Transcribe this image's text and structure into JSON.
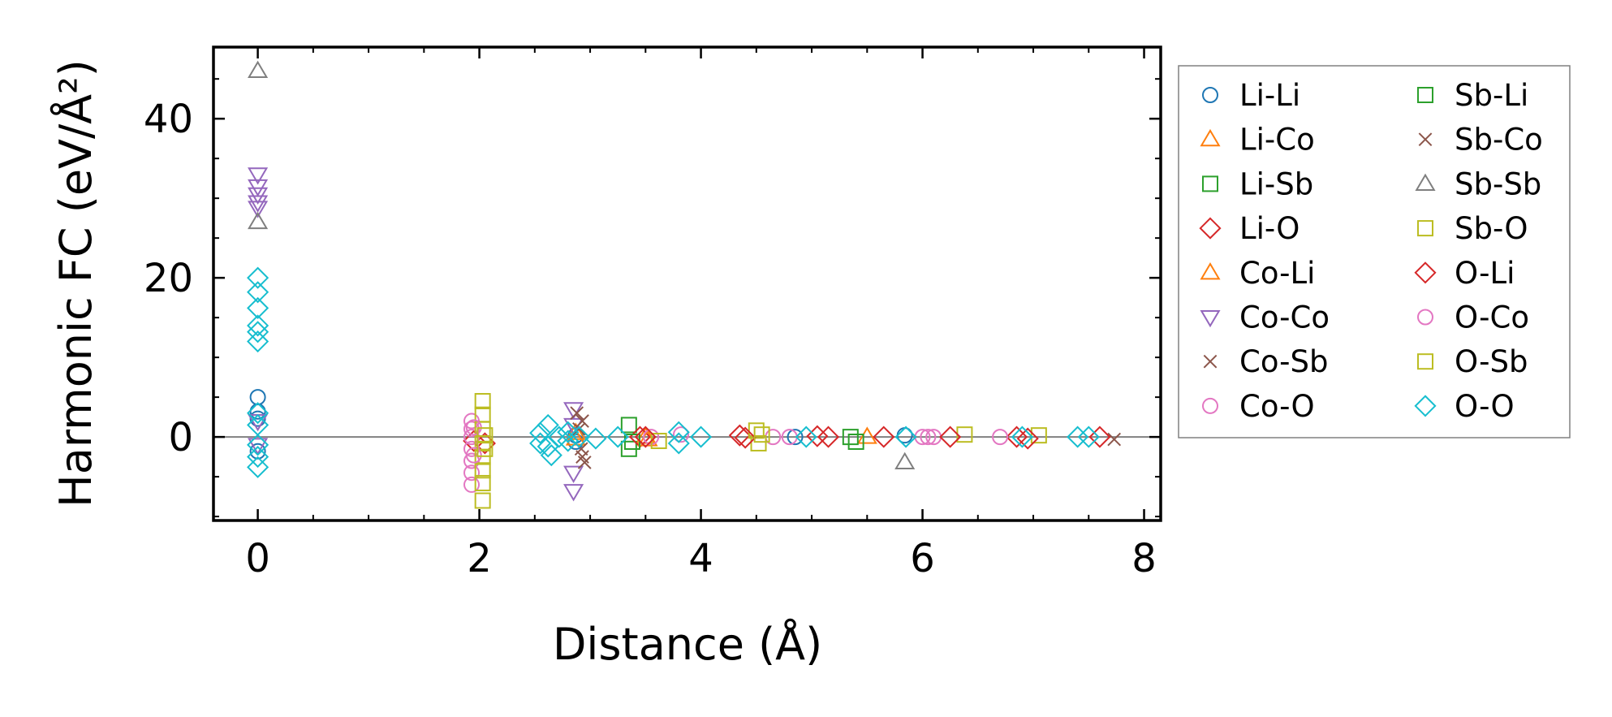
{
  "chart_data": {
    "type": "scatter",
    "title": "",
    "xlabel": "Distance (Å)",
    "ylabel": "Harmonic FC (eV/Å²)",
    "xlim": [
      -0.4,
      8.15
    ],
    "ylim": [
      -10.5,
      49
    ],
    "xticks": [
      0,
      2,
      4,
      6,
      8
    ],
    "yticks": [
      0,
      20,
      40
    ],
    "grid": false,
    "zero_line": true,
    "legend_position": "outside-right",
    "series": [
      {
        "name": "Li-Li",
        "color": "#1f77b4",
        "marker": "circle",
        "points": [
          [
            0,
            5.0
          ],
          [
            0,
            3.2
          ],
          [
            0,
            2.3
          ],
          [
            0,
            -1.8
          ],
          [
            2.87,
            0.2
          ],
          [
            2.87,
            -0.6
          ],
          [
            4.85,
            0.0
          ],
          [
            5.84,
            0.2
          ]
        ]
      },
      {
        "name": "Li-Co",
        "color": "#ff7f0e",
        "marker": "triangle-up",
        "points": [
          [
            2.87,
            0.5
          ],
          [
            3.5,
            0.0
          ],
          [
            5.5,
            0.0
          ]
        ]
      },
      {
        "name": "Li-Sb",
        "color": "#2ca02c",
        "marker": "square",
        "points": [
          [
            3.35,
            1.5
          ],
          [
            3.35,
            -1.5
          ],
          [
            5.35,
            0.0
          ],
          [
            5.4,
            -0.6
          ]
        ]
      },
      {
        "name": "Li-O",
        "color": "#d62728",
        "marker": "diamond",
        "points": [
          [
            1.95,
            -0.5
          ],
          [
            2.05,
            -0.8
          ],
          [
            3.45,
            0.0
          ],
          [
            4.35,
            0.2
          ],
          [
            5.15,
            0.0
          ],
          [
            5.65,
            0.0
          ],
          [
            6.85,
            0.0
          ]
        ]
      },
      {
        "name": "Co-Li",
        "color": "#ff7f0e",
        "marker": "triangle-up",
        "points": [
          [
            2.87,
            -0.2
          ],
          [
            3.52,
            -0.3
          ]
        ]
      },
      {
        "name": "Co-Co",
        "color": "#9467bd",
        "marker": "triangle-down",
        "points": [
          [
            0,
            33.0
          ],
          [
            0,
            31.5
          ],
          [
            0,
            30.5
          ],
          [
            0,
            29.5
          ],
          [
            0,
            28.8
          ],
          [
            0,
            2.0
          ],
          [
            0,
            -1.0
          ],
          [
            2.85,
            3.5
          ],
          [
            2.85,
            1.5
          ],
          [
            2.85,
            -4.5
          ],
          [
            2.85,
            -6.8
          ]
        ]
      },
      {
        "name": "Co-Sb",
        "color": "#8c564b",
        "marker": "x",
        "points": [
          [
            2.88,
            3.0
          ],
          [
            2.9,
            1.0
          ],
          [
            2.92,
            -1.5
          ],
          [
            2.95,
            -3.2
          ],
          [
            7.73,
            -0.3
          ]
        ]
      },
      {
        "name": "Co-O",
        "color": "#e377c2",
        "marker": "circle",
        "points": [
          [
            1.93,
            2.0
          ],
          [
            1.93,
            1.0
          ],
          [
            1.93,
            0.0
          ],
          [
            1.93,
            -1.5
          ],
          [
            1.93,
            -3.0
          ],
          [
            1.93,
            -4.5
          ],
          [
            1.93,
            -6.0
          ],
          [
            3.55,
            0.0
          ],
          [
            4.65,
            0.0
          ],
          [
            4.8,
            0.0
          ],
          [
            6.0,
            0.0
          ],
          [
            6.1,
            0.0
          ],
          [
            6.7,
            0.0
          ]
        ]
      },
      {
        "name": "Sb-Li",
        "color": "#2ca02c",
        "marker": "square",
        "points": [
          [
            3.38,
            -0.6
          ]
        ]
      },
      {
        "name": "Sb-Co",
        "color": "#8c564b",
        "marker": "x",
        "points": [
          [
            2.93,
            2.0
          ],
          [
            2.93,
            -2.5
          ]
        ]
      },
      {
        "name": "Sb-Sb",
        "color": "#7f7f7f",
        "marker": "triangle-up",
        "points": [
          [
            0,
            46.0
          ],
          [
            0,
            27.0
          ],
          [
            5.84,
            -3.2
          ]
        ]
      },
      {
        "name": "Sb-O",
        "color": "#bcbd22",
        "marker": "square",
        "points": [
          [
            2.03,
            4.5
          ],
          [
            2.03,
            2.8
          ],
          [
            2.03,
            1.0
          ],
          [
            2.03,
            -0.8
          ],
          [
            2.03,
            -2.5
          ],
          [
            2.03,
            -4.2
          ],
          [
            2.03,
            -5.8
          ],
          [
            2.03,
            -8.0
          ],
          [
            3.62,
            -0.5
          ],
          [
            4.5,
            0.8
          ],
          [
            4.52,
            -0.8
          ],
          [
            6.38,
            0.3
          ],
          [
            7.05,
            0.2
          ]
        ]
      },
      {
        "name": "O-Li",
        "color": "#d62728",
        "marker": "diamond",
        "points": [
          [
            3.5,
            0.0
          ],
          [
            4.4,
            -0.1
          ],
          [
            5.05,
            0.1
          ],
          [
            6.25,
            0.0
          ],
          [
            6.95,
            -0.2
          ],
          [
            7.6,
            0.0
          ]
        ]
      },
      {
        "name": "O-Co",
        "color": "#e377c2",
        "marker": "circle",
        "points": [
          [
            1.95,
            1.2
          ],
          [
            1.95,
            -2.3
          ],
          [
            3.82,
            0.3
          ],
          [
            6.05,
            0.0
          ]
        ]
      },
      {
        "name": "O-Sb",
        "color": "#bcbd22",
        "marker": "square",
        "points": [
          [
            2.05,
            0.2
          ],
          [
            2.05,
            -1.5
          ],
          [
            4.55,
            0.3
          ]
        ]
      },
      {
        "name": "O-O",
        "color": "#17becf",
        "marker": "diamond",
        "points": [
          [
            0,
            20.0
          ],
          [
            0,
            18.2
          ],
          [
            0,
            16.2
          ],
          [
            0,
            14.0
          ],
          [
            0,
            13.2
          ],
          [
            0,
            12.0
          ],
          [
            0,
            3.0
          ],
          [
            0,
            1.5
          ],
          [
            0,
            -1.0
          ],
          [
            0,
            -2.5
          ],
          [
            0,
            -3.8
          ],
          [
            2.55,
            0.5
          ],
          [
            2.55,
            -0.8
          ],
          [
            2.62,
            1.5
          ],
          [
            2.62,
            -1.2
          ],
          [
            2.65,
            -2.3
          ],
          [
            2.72,
            0.0
          ],
          [
            2.8,
            0.6
          ],
          [
            2.8,
            -0.5
          ],
          [
            2.9,
            0.0
          ],
          [
            3.05,
            -0.2
          ],
          [
            3.25,
            0.0
          ],
          [
            3.8,
            0.6
          ],
          [
            3.8,
            -0.8
          ],
          [
            4.0,
            0.0
          ],
          [
            4.95,
            0.0
          ],
          [
            5.85,
            0.0
          ],
          [
            6.9,
            0.0
          ],
          [
            7.4,
            0.0
          ],
          [
            7.5,
            0.0
          ]
        ]
      }
    ]
  }
}
